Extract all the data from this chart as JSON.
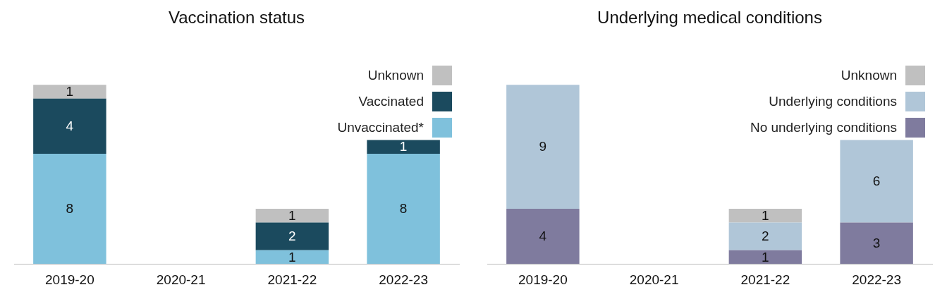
{
  "chart_data": [
    {
      "type": "bar",
      "title": "Vaccination status",
      "categories": [
        "2019-20",
        "2020-21",
        "2021-22",
        "2022-23"
      ],
      "stacked": true,
      "data_labels": true,
      "legend": "top right",
      "grid": false,
      "tick_labels": "x",
      "series": [
        {
          "name": "Unvaccinated*",
          "color": "#7fc1dc",
          "values": [
            8,
            null,
            1,
            8
          ]
        },
        {
          "name": "Vaccinated",
          "color": "#1b4a5e",
          "values": [
            4,
            null,
            2,
            1
          ]
        },
        {
          "name": "Unknown",
          "color": "#c0c0c0",
          "values": [
            1,
            null,
            1,
            null
          ]
        }
      ]
    },
    {
      "type": "bar",
      "title": "Underlying medical conditions",
      "categories": [
        "2019-20",
        "2020-21",
        "2021-22",
        "2022-23"
      ],
      "stacked": true,
      "data_labels": true,
      "legend": "top right",
      "grid": false,
      "tick_labels": "x",
      "series": [
        {
          "name": "No underlying conditions",
          "color": "#7f7b9e",
          "values": [
            4,
            null,
            1,
            3
          ]
        },
        {
          "name": "Underlying conditions",
          "color": "#b0c6d8",
          "values": [
            9,
            null,
            2,
            6
          ]
        },
        {
          "name": "Unknown",
          "color": "#c0c0c0",
          "values": [
            null,
            null,
            1,
            null
          ]
        }
      ]
    }
  ]
}
